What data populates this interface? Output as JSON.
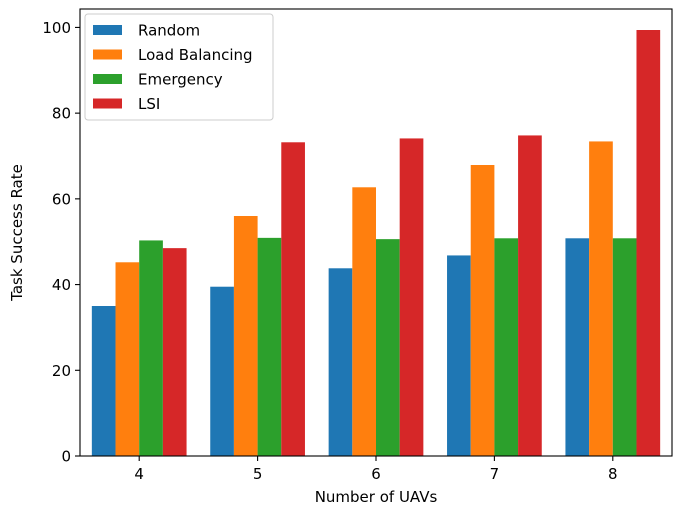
{
  "chart_data": {
    "type": "bar",
    "title": "",
    "xlabel": "Number of UAVs",
    "ylabel": "Task Success Rate",
    "categories": [
      "4",
      "5",
      "6",
      "7",
      "8"
    ],
    "ylim": [
      0,
      104.3
    ],
    "yticks": [
      0,
      20,
      40,
      60,
      80,
      100
    ],
    "grid": false,
    "legend_position": "top-left",
    "series": [
      {
        "name": "Random",
        "color": "#1f77b4",
        "values": [
          35.0,
          39.5,
          43.8,
          46.8,
          50.8
        ]
      },
      {
        "name": "Load Balancing",
        "color": "#ff7f0e",
        "values": [
          45.2,
          56.0,
          62.7,
          67.9,
          73.4
        ]
      },
      {
        "name": "Emergency",
        "color": "#2ca02c",
        "values": [
          50.3,
          50.9,
          50.6,
          50.8,
          50.8
        ]
      },
      {
        "name": "LSI",
        "color": "#d62728",
        "values": [
          48.5,
          73.2,
          74.1,
          74.8,
          99.4
        ]
      }
    ]
  }
}
